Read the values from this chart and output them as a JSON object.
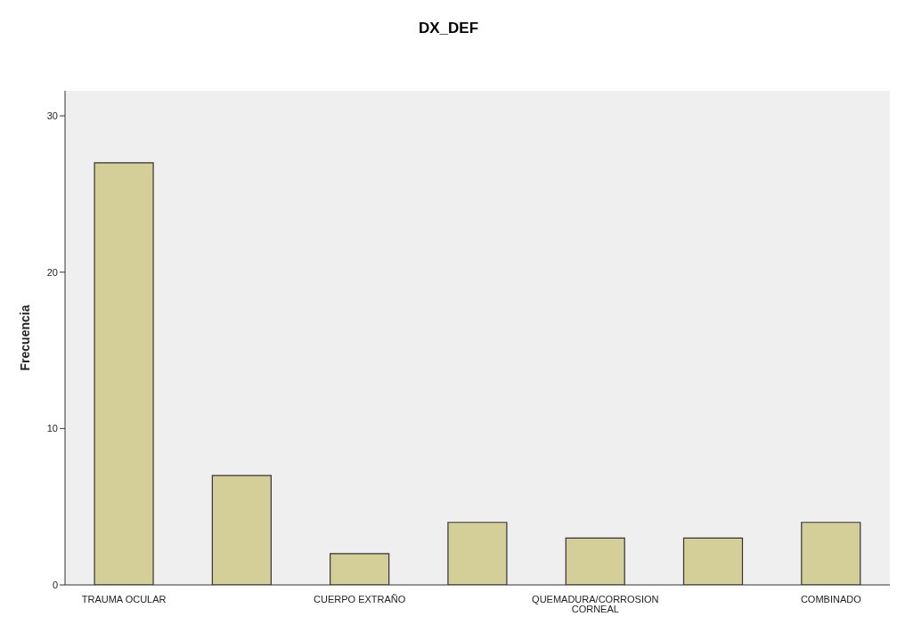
{
  "chart_data": {
    "type": "bar",
    "title": "DX_DEF",
    "ylabel": "Frecuencia",
    "categories": [
      "TRAUMA OCULAR",
      null,
      "CUERPO EXTRAÑO",
      null,
      "QUEMADURA/CORROSION CORNEAL",
      null,
      "COMBINADO"
    ],
    "values": [
      27,
      7,
      2,
      4,
      3,
      3,
      4
    ],
    "color": "#d4cf98",
    "ylim": [
      0,
      31.6
    ],
    "yticks": [
      0,
      10,
      20,
      30
    ],
    "grid": false
  }
}
